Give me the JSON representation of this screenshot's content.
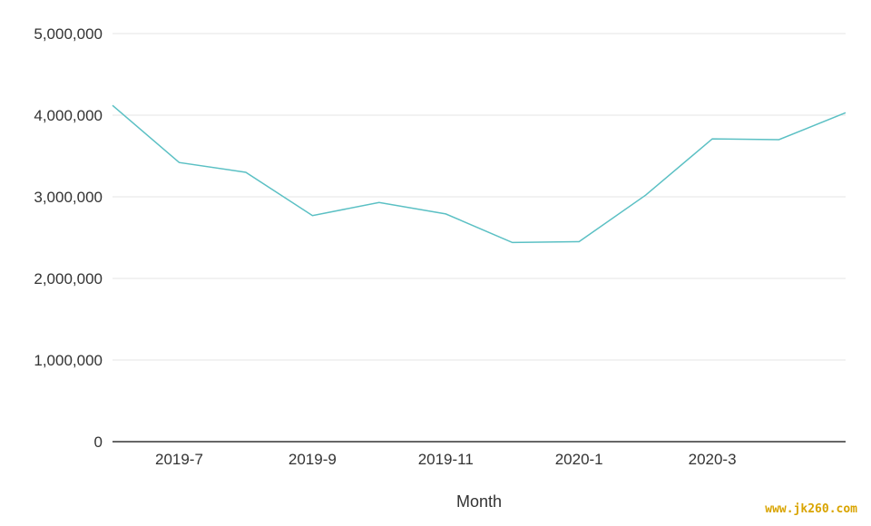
{
  "chart_data": {
    "type": "line",
    "title": "",
    "xlabel": "Month",
    "ylabel": "",
    "x": [
      "2019-6",
      "2019-7",
      "2019-8",
      "2019-9",
      "2019-10",
      "2019-11",
      "2019-12",
      "2020-1",
      "2020-2",
      "2020-3",
      "2020-4",
      "2020-5"
    ],
    "x_tick_labels": [
      "2019-7",
      "2019-9",
      "2019-11",
      "2020-1",
      "2020-3"
    ],
    "y_tick_labels": [
      "0",
      "1,000,000",
      "2,000,000",
      "3,000,000",
      "4,000,000",
      "5,000,000"
    ],
    "ylim": [
      0,
      5000000
    ],
    "grid": true,
    "series": [
      {
        "values": [
          4120000,
          3420000,
          3300000,
          2770000,
          2930000,
          2790000,
          2440000,
          2450000,
          3020000,
          3710000,
          3700000,
          4030000
        ],
        "color": "#5bc0c4"
      }
    ]
  },
  "watermark": "www.jk260.com"
}
